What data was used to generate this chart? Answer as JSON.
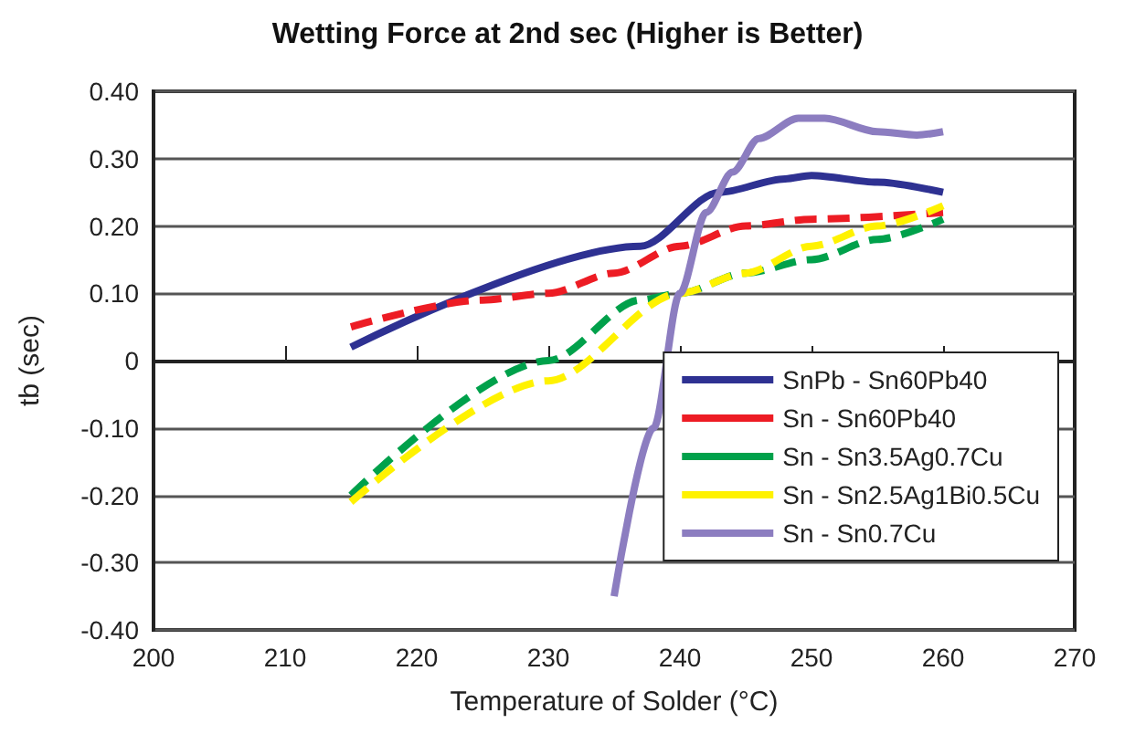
{
  "chart_data": {
    "type": "line",
    "title": "Wetting Force at 2nd sec (Higher is Better)",
    "xlabel": "Temperature of Solder (°C)",
    "ylabel": "tb (sec)",
    "xlim": [
      200,
      270
    ],
    "xticks": [
      200,
      210,
      220,
      230,
      240,
      250,
      260,
      270
    ],
    "ylim": [
      -0.4,
      0.4
    ],
    "yticks": [
      {
        "value": -0.4,
        "label": "-0.40"
      },
      {
        "value": -0.3,
        "label": "-0.30"
      },
      {
        "value": -0.2,
        "label": "-0.20"
      },
      {
        "value": -0.1,
        "label": "-0.10"
      },
      {
        "value": 0,
        "label": "0"
      },
      {
        "value": 0.1,
        "label": "0.10"
      },
      {
        "value": 0.2,
        "label": "0.20"
      },
      {
        "value": 0.3,
        "label": "0.30"
      },
      {
        "value": 0.4,
        "label": "0.40"
      }
    ],
    "grid": "y",
    "legend": "bottom right",
    "marker": "none",
    "series": [
      {
        "name": "SnPb - Sn60Pb40",
        "color": "#2e3192",
        "line_style": "solid",
        "x": [
          215,
          237,
          243,
          248,
          250,
          255,
          260
        ],
        "values": [
          0.02,
          0.17,
          0.25,
          0.27,
          0.275,
          0.265,
          0.25
        ]
      },
      {
        "name": "Sn - Sn60Pb40",
        "color": "#ed1c24",
        "line_style": "dashed",
        "x": [
          215,
          225,
          230,
          235,
          240,
          245,
          250,
          260
        ],
        "values": [
          0.05,
          0.09,
          0.1,
          0.13,
          0.17,
          0.2,
          0.21,
          0.22
        ]
      },
      {
        "name": "Sn - Sn3.5Ag0.7Cu",
        "color": "#00a14b",
        "line_style": "dashed",
        "x": [
          215,
          230,
          237,
          240,
          245,
          250,
          255,
          260
        ],
        "values": [
          -0.2,
          0,
          0.09,
          0.1,
          0.13,
          0.15,
          0.18,
          0.21
        ]
      },
      {
        "name": "Sn - Sn2.5Ag1Bi0.5Cu",
        "color": "#fff200",
        "line_style": "dashed",
        "x": [
          215,
          230,
          240,
          245,
          250,
          255,
          260
        ],
        "values": [
          -0.21,
          -0.03,
          0.1,
          0.13,
          0.17,
          0.2,
          0.23
        ]
      },
      {
        "name": "Sn - Sn0.7Cu",
        "color": "#8c7dc0",
        "line_style": "solid",
        "x": [
          235,
          238,
          240,
          242,
          244,
          246,
          249,
          251,
          255,
          258,
          260
        ],
        "values": [
          -0.35,
          -0.1,
          0.1,
          0.22,
          0.28,
          0.33,
          0.36,
          0.36,
          0.34,
          0.335,
          0.34
        ]
      }
    ]
  }
}
